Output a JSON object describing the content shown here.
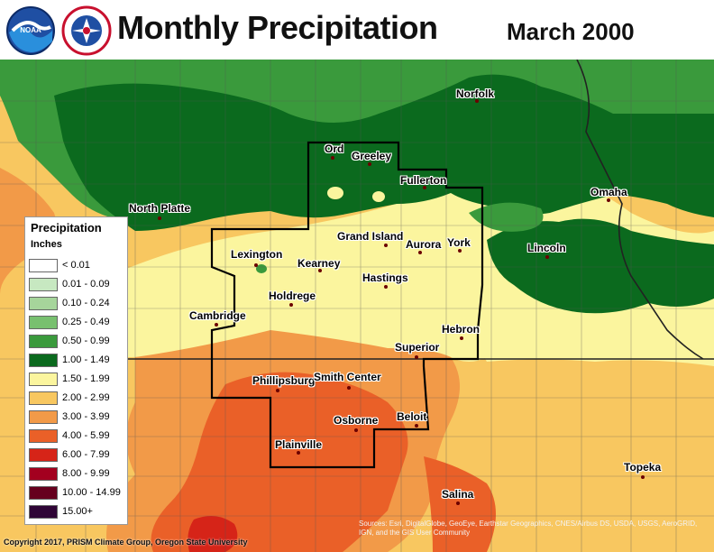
{
  "title": "Monthly Precipitation",
  "subtitle": "March 2000",
  "logos": [
    {
      "name": "noaa-logo",
      "text": "NOAA"
    },
    {
      "name": "nws-logo",
      "text": "NATIONAL WEATHER SERVICE"
    }
  ],
  "legend": {
    "title": "Precipitation",
    "units": "Inches",
    "items": [
      {
        "label": "< 0.01",
        "color": "#ffffff"
      },
      {
        "label": "0.01 - 0.09",
        "color": "#c7e8c1"
      },
      {
        "label": "0.10 - 0.24",
        "color": "#a6d59b"
      },
      {
        "label": "0.25 - 0.49",
        "color": "#78c06f"
      },
      {
        "label": "0.50 - 0.99",
        "color": "#3a9a3c"
      },
      {
        "label": "1.00 - 1.49",
        "color": "#0b6a1e"
      },
      {
        "label": "1.50 - 1.99",
        "color": "#fbf59e"
      },
      {
        "label": "2.00 - 2.99",
        "color": "#f8c760"
      },
      {
        "label": "3.00 - 3.99",
        "color": "#f29a48"
      },
      {
        "label": "4.00 - 5.99",
        "color": "#ea6028"
      },
      {
        "label": "6.00 - 7.99",
        "color": "#d62418"
      },
      {
        "label": "8.00 - 9.99",
        "color": "#a3001f"
      },
      {
        "label": "10.00 - 14.99",
        "color": "#66001e"
      },
      {
        "label": "15.00+",
        "color": "#2f0536"
      }
    ]
  },
  "cities": [
    {
      "name": "Norfolk"
    },
    {
      "name": "Ord"
    },
    {
      "name": "Greeley"
    },
    {
      "name": "Fullerton"
    },
    {
      "name": "Omaha"
    },
    {
      "name": "North Platte"
    },
    {
      "name": "Grand Island"
    },
    {
      "name": "Aurora"
    },
    {
      "name": "York"
    },
    {
      "name": "Lincoln"
    },
    {
      "name": "Lexington"
    },
    {
      "name": "Kearney"
    },
    {
      "name": "Hastings"
    },
    {
      "name": "Holdrege"
    },
    {
      "name": "Cambridge"
    },
    {
      "name": "Hebron"
    },
    {
      "name": "Superior"
    },
    {
      "name": "Phillipsburg"
    },
    {
      "name": "Smith Center"
    },
    {
      "name": "Osborne"
    },
    {
      "name": "Beloit"
    },
    {
      "name": "Plainville"
    },
    {
      "name": "Topeka"
    },
    {
      "name": "Salina"
    }
  ],
  "copyright": "Copyright 2017, PRISM Climate Group, Oregon State University",
  "attribution": "Sources: Esri, DigitalGlobe, GeoEye, Earthstar Geographics, CNES/Airbus DS, USDA, USGS, AeroGRID, IGN, and the GIS User Community"
}
